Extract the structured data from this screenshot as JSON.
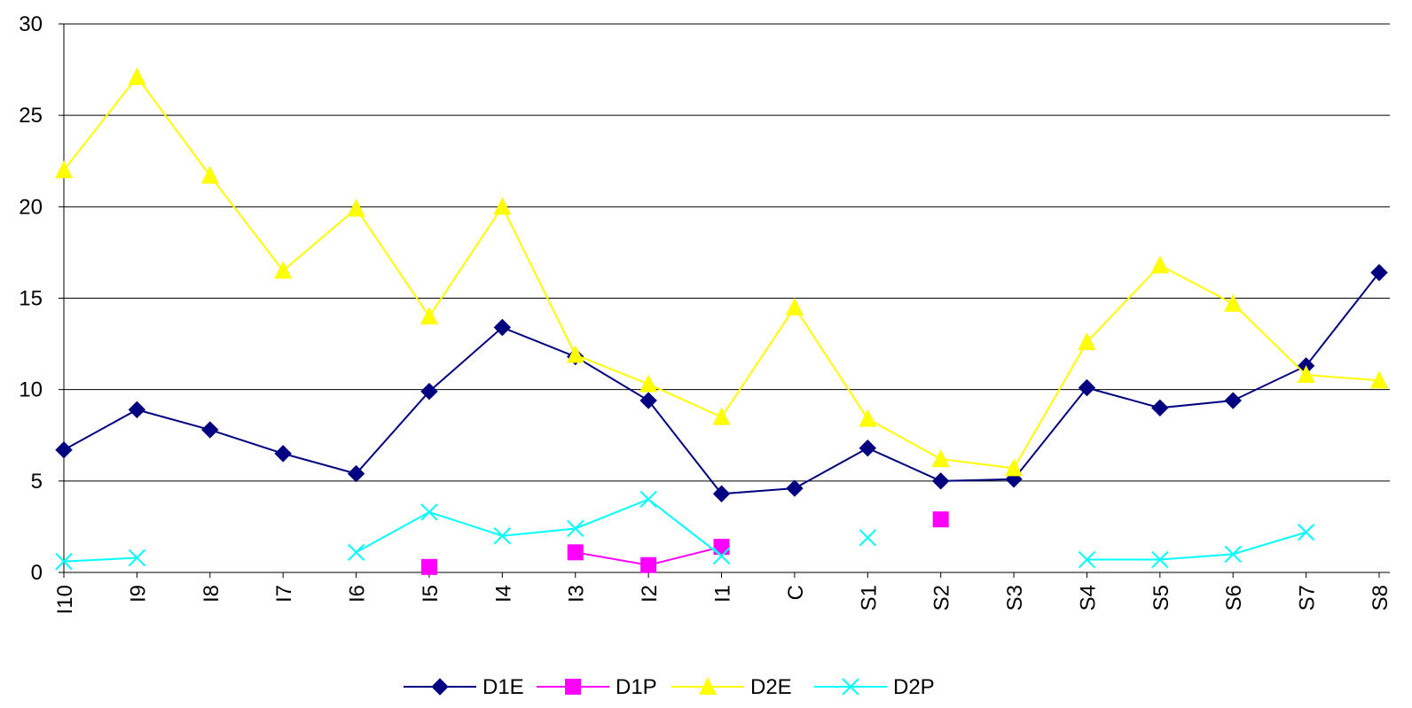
{
  "chart_data": {
    "type": "line",
    "categories": [
      "I10",
      "I9",
      "I8",
      "I7",
      "I6",
      "I5",
      "I4",
      "I3",
      "I2",
      "I1",
      "C",
      "S1",
      "S2",
      "S3",
      "S4",
      "S5",
      "S6",
      "S7",
      "S8"
    ],
    "series": [
      {
        "name": "D1E",
        "color": "#000080",
        "marker": "diamond",
        "values": [
          6.7,
          8.9,
          7.8,
          6.5,
          5.4,
          9.9,
          13.4,
          11.8,
          9.4,
          4.3,
          4.6,
          6.8,
          5.0,
          5.1,
          10.1,
          9.0,
          9.4,
          11.3,
          16.4
        ]
      },
      {
        "name": "D1P",
        "color": "#ff00ff",
        "marker": "square",
        "values": [
          null,
          null,
          null,
          null,
          null,
          0.3,
          null,
          1.1,
          0.4,
          1.4,
          null,
          null,
          2.9,
          null,
          null,
          null,
          null,
          null,
          null
        ]
      },
      {
        "name": "D2E",
        "color": "#ffff00",
        "marker": "triangle",
        "values": [
          22.0,
          27.1,
          21.7,
          16.5,
          19.9,
          14.0,
          20.0,
          11.9,
          10.3,
          8.5,
          14.5,
          8.4,
          6.2,
          5.7,
          12.6,
          16.8,
          14.7,
          10.8,
          10.5
        ]
      },
      {
        "name": "D2P",
        "color": "#00ffff",
        "marker": "x",
        "values": [
          0.6,
          0.8,
          null,
          null,
          1.1,
          3.3,
          2.0,
          2.4,
          4.0,
          0.9,
          null,
          1.9,
          null,
          null,
          0.7,
          0.7,
          1.0,
          2.2,
          null
        ]
      }
    ],
    "ylim": [
      0,
      30
    ],
    "yticks": [
      0,
      5,
      10,
      15,
      20,
      25,
      30
    ],
    "grid": true,
    "legend": "bottom"
  }
}
